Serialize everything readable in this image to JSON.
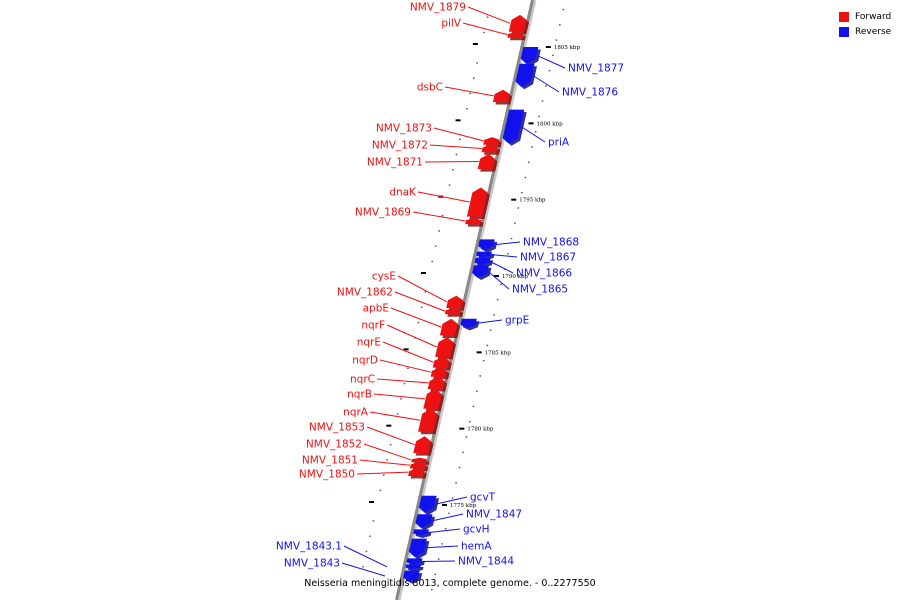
{
  "title": "Neisseria meningitidis 8013, complete genome. - 0..2277550",
  "colors": {
    "forward": "#ee1111",
    "reverse": "#1111ee",
    "backbone": "#888888"
  },
  "legend": [
    {
      "label": "Forward",
      "color": "#ee1111"
    },
    {
      "label": "Reverse",
      "color": "#1111ee"
    }
  ],
  "ticks": [
    {
      "label": "1805 kbp",
      "pos_kbp": 1805
    },
    {
      "label": "1800 kbp",
      "pos_kbp": 1800
    },
    {
      "label": "1795 kbp",
      "pos_kbp": 1795
    },
    {
      "label": "1790 kbp",
      "pos_kbp": 1790
    },
    {
      "label": "1785 kbp",
      "pos_kbp": 1785
    },
    {
      "label": "1780 kbp",
      "pos_kbp": 1780
    },
    {
      "label": "1775 kbp",
      "pos_kbp": 1775
    }
  ],
  "genes": [
    {
      "name": "NMV_1879",
      "strand": "forward",
      "start_kbp": 1806.0,
      "end_kbp": 1807.1
    },
    {
      "name": "pilV",
      "strand": "forward",
      "start_kbp": 1805.6,
      "end_kbp": 1806.0
    },
    {
      "name": "dsbC",
      "strand": "forward",
      "start_kbp": 1801.4,
      "end_kbp": 1802.2
    },
    {
      "name": "NMV_1873",
      "strand": "forward",
      "start_kbp": 1798.6,
      "end_kbp": 1799.1
    },
    {
      "name": "NMV_1872",
      "strand": "forward",
      "start_kbp": 1798.1,
      "end_kbp": 1798.6
    },
    {
      "name": "NMV_1871",
      "strand": "forward",
      "start_kbp": 1797.0,
      "end_kbp": 1798.0
    },
    {
      "name": "dnaK",
      "strand": "forward",
      "start_kbp": 1793.9,
      "end_kbp": 1795.8
    },
    {
      "name": "NMV_1869",
      "strand": "forward",
      "start_kbp": 1793.4,
      "end_kbp": 1793.8
    },
    {
      "name": "cysE",
      "strand": "forward",
      "start_kbp": 1787.9,
      "end_kbp": 1788.7
    },
    {
      "name": "NMV_1862",
      "strand": "forward",
      "start_kbp": 1787.5,
      "end_kbp": 1787.9
    },
    {
      "name": "apbE",
      "strand": "forward",
      "start_kbp": 1786.1,
      "end_kbp": 1787.2
    },
    {
      "name": "nqrF",
      "strand": "forward",
      "start_kbp": 1784.7,
      "end_kbp": 1786.0
    },
    {
      "name": "nqrE",
      "strand": "forward",
      "start_kbp": 1784.0,
      "end_kbp": 1784.7
    },
    {
      "name": "nqrD",
      "strand": "forward",
      "start_kbp": 1783.4,
      "end_kbp": 1784.0
    },
    {
      "name": "nqrC",
      "strand": "forward",
      "start_kbp": 1782.6,
      "end_kbp": 1783.4
    },
    {
      "name": "nqrB",
      "strand": "forward",
      "start_kbp": 1781.3,
      "end_kbp": 1782.6
    },
    {
      "name": "nqrA",
      "strand": "forward",
      "start_kbp": 1779.8,
      "end_kbp": 1781.3
    },
    {
      "name": "NMV_1853",
      "strand": "forward",
      "start_kbp": 1778.4,
      "end_kbp": 1779.5
    },
    {
      "name": "NMV_1852",
      "strand": "forward",
      "start_kbp": 1777.8,
      "end_kbp": 1778.1
    },
    {
      "name": "NMV_1851",
      "strand": "forward",
      "start_kbp": 1777.4,
      "end_kbp": 1777.8
    },
    {
      "name": "NMV_1850",
      "strand": "forward",
      "start_kbp": 1776.9,
      "end_kbp": 1777.4
    },
    {
      "name": "NMV_1877",
      "strand": "reverse",
      "start_kbp": 1803.9,
      "end_kbp": 1805.0
    },
    {
      "name": "NMV_1876",
      "strand": "reverse",
      "start_kbp": 1802.4,
      "end_kbp": 1803.9
    },
    {
      "name": "priA",
      "strand": "reverse",
      "start_kbp": 1798.7,
      "end_kbp": 1800.9
    },
    {
      "name": "NMV_1868",
      "strand": "reverse",
      "start_kbp": 1791.7,
      "end_kbp": 1792.4
    },
    {
      "name": "NMV_1867",
      "strand": "reverse",
      "start_kbp": 1791.2,
      "end_kbp": 1791.6
    },
    {
      "name": "NMV_1866",
      "strand": "reverse",
      "start_kbp": 1790.7,
      "end_kbp": 1791.2
    },
    {
      "name": "NMV_1865",
      "strand": "reverse",
      "start_kbp": 1789.9,
      "end_kbp": 1790.7
    },
    {
      "name": "grpE",
      "strand": "reverse",
      "start_kbp": 1786.6,
      "end_kbp": 1787.2
    },
    {
      "name": "gcvT",
      "strand": "reverse",
      "start_kbp": 1774.5,
      "end_kbp": 1775.6
    },
    {
      "name": "NMV_1847",
      "strand": "reverse",
      "start_kbp": 1773.5,
      "end_kbp": 1774.4
    },
    {
      "name": "gcvH",
      "strand": "reverse",
      "start_kbp": 1773.0,
      "end_kbp": 1773.4
    },
    {
      "name": "hemA",
      "strand": "reverse",
      "start_kbp": 1771.6,
      "end_kbp": 1772.8
    },
    {
      "name": "NMV_1844",
      "strand": "reverse",
      "start_kbp": 1771.1,
      "end_kbp": 1771.5
    },
    {
      "name": "NMV_1843.1",
      "strand": "reverse",
      "start_kbp": 1770.8,
      "end_kbp": 1771.1
    },
    {
      "name": "NMV_1843",
      "strand": "reverse",
      "start_kbp": 1770.0,
      "end_kbp": 1770.7
    }
  ]
}
